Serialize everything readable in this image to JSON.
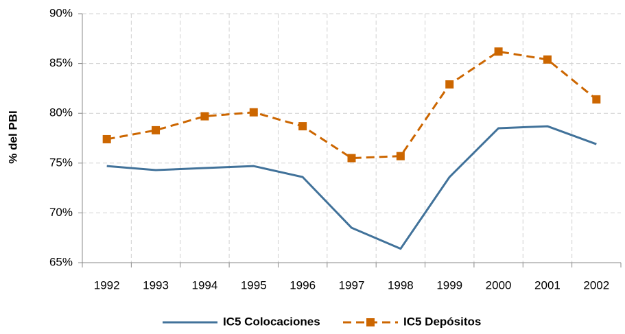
{
  "chart_data": {
    "type": "line",
    "y_label": "% del PBI",
    "categories": [
      "1992",
      "1993",
      "1994",
      "1995",
      "1996",
      "1997",
      "1998",
      "1999",
      "2000",
      "2001",
      "2002"
    ],
    "series": [
      {
        "name": "IC5 Colocaciones",
        "color": "#41729a",
        "dashed": false,
        "marker": false,
        "values": [
          74.7,
          74.3,
          74.5,
          74.7,
          73.6,
          68.5,
          66.4,
          73.6,
          78.5,
          78.7,
          76.9
        ]
      },
      {
        "name": "IC5 Depósitos",
        "color": "#cc6600",
        "dashed": true,
        "marker": true,
        "values": [
          77.4,
          78.3,
          79.7,
          80.1,
          78.7,
          75.5,
          75.7,
          82.9,
          86.2,
          85.4,
          81.4
        ]
      }
    ],
    "ylim": [
      65,
      90
    ],
    "yticks": [
      {
        "value": 65,
        "label": "65%"
      },
      {
        "value": 70,
        "label": "70%"
      },
      {
        "value": 75,
        "label": "75%"
      },
      {
        "value": 80,
        "label": "80%"
      },
      {
        "value": 85,
        "label": "85%"
      },
      {
        "value": 90,
        "label": "90%"
      }
    ],
    "grid": true,
    "legend": "bottom"
  }
}
